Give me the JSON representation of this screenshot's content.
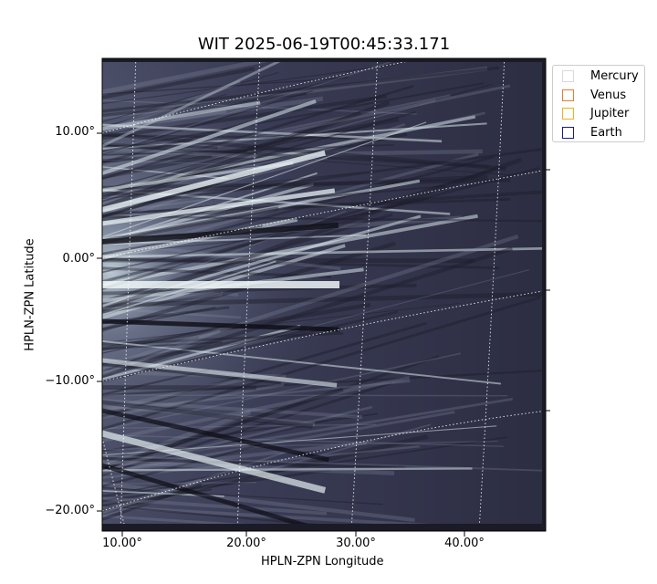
{
  "figure": {
    "title": "WIT 2025-06-19T00:45:33.171",
    "xlabel": "HPLN-ZPN Longitude",
    "ylabel": "HPLN-ZPN Latitude"
  },
  "legend": {
    "items": [
      {
        "label": "Mercury",
        "color": "#d9d9d9"
      },
      {
        "label": "Venus",
        "color": "#e07b39"
      },
      {
        "label": "Jupiter",
        "color": "#e6b422"
      },
      {
        "label": "Earth",
        "color": "#1a1a8c"
      }
    ]
  },
  "x_ticks": [
    "10.00°",
    "20.00°",
    "30.00°",
    "40.00°"
  ],
  "y_ticks": [
    "10.00°",
    "0.00°",
    "−10.00°",
    "−20.00°"
  ],
  "image": {
    "colormap": "bone",
    "background_color": "#2b2c3f",
    "grid_color": "#ffffff"
  }
}
